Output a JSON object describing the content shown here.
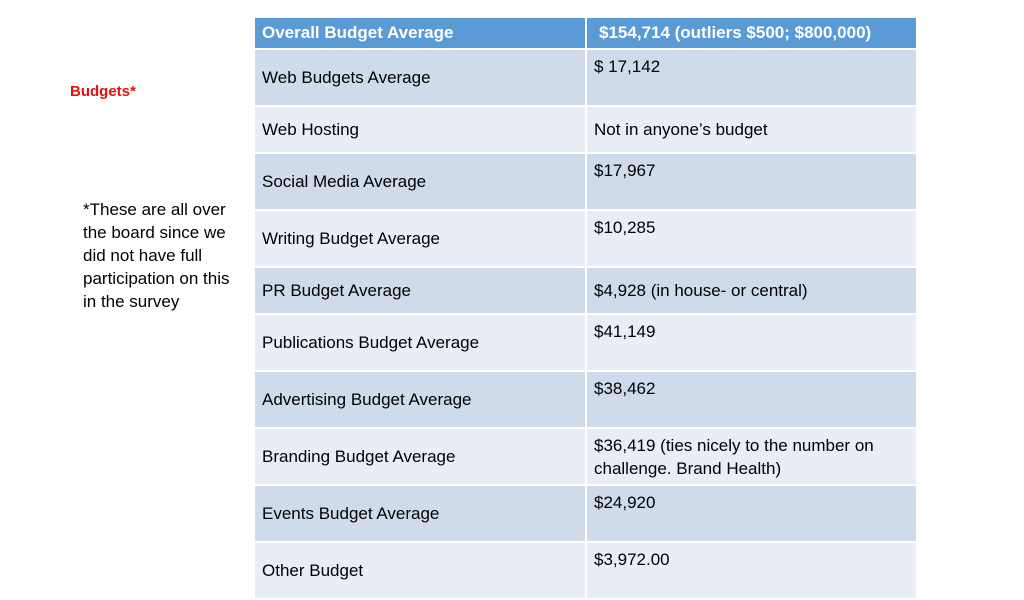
{
  "title": "Budgets*",
  "footnote": "*These are all over the board since we did not have full participation on this in the survey",
  "table": {
    "header": {
      "label": "Overall Budget Average",
      "value": "$154,714  (outliers $500; $800,000)"
    },
    "rows": [
      {
        "label": "Web Budgets Average",
        "value": "$ 17,142"
      },
      {
        "label": "Web Hosting",
        "value": "Not in anyone’s budget"
      },
      {
        "label": "Social Media Average",
        "value": "$17,967"
      },
      {
        "label": "Writing Budget Average",
        "value": "$10,285"
      },
      {
        "label": "PR Budget Average",
        "value": "$4,928 (in house- or central)"
      },
      {
        "label": "Publications Budget Average",
        "value": "$41,149"
      },
      {
        "label": "Advertising Budget Average",
        "value": "$38,462"
      },
      {
        "label": "Branding Budget Average",
        "value": "$36,419  (ties  nicely to the number on challenge. Brand Health)"
      },
      {
        "label": "Events Budget Average",
        "value": "$24,920"
      },
      {
        "label": "Other Budget",
        "value": "$3,972.00"
      }
    ]
  },
  "colors": {
    "header_bg": "#5b9bd5",
    "row_dark": "#cfdbeb",
    "row_light": "#e9eef6",
    "title": "#e0120e"
  }
}
